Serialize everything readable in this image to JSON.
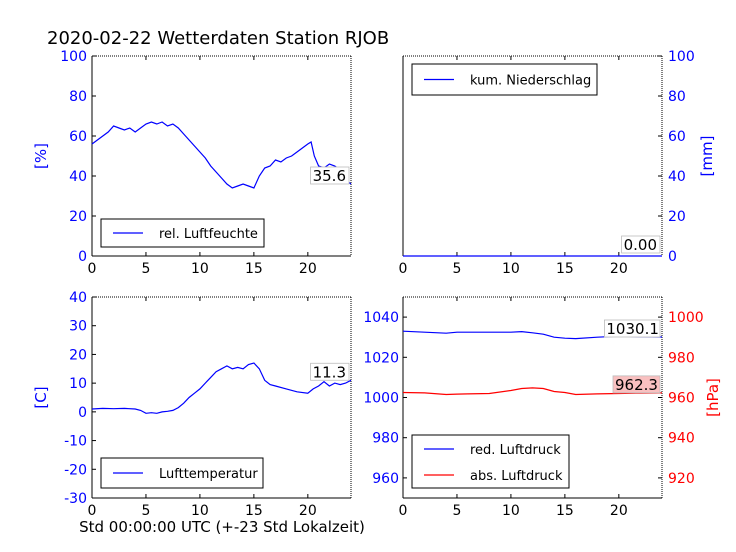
{
  "title": "2020-02-22 Wetterdaten Station RJOB",
  "xlabel": "Std 00:00:00 UTC (+-23 Std Lokalzeit)",
  "chart_data": [
    {
      "type": "line",
      "id": "humidity",
      "ylabel": "[%]",
      "ylim": [
        0,
        100
      ],
      "xlim": [
        0,
        24
      ],
      "xticks": [
        0,
        5,
        10,
        15,
        20
      ],
      "yticks": [
        0,
        20,
        40,
        60,
        80,
        100
      ],
      "legend": "rel. Luftfeuchte",
      "legend_position": "lower-left",
      "annotation": "35.6",
      "color": "#0000ff",
      "series": [
        {
          "name": "rel. Luftfeuchte",
          "x": [
            0,
            0.5,
            1,
            1.5,
            2,
            2.5,
            3,
            3.5,
            4,
            4.5,
            5,
            5.5,
            6,
            6.5,
            7,
            7.5,
            8,
            8.5,
            9,
            9.5,
            10,
            10.5,
            11,
            11.5,
            12,
            12.5,
            13,
            13.5,
            14,
            14.5,
            15,
            15.5,
            16,
            16.5,
            17,
            17.5,
            18,
            18.5,
            19,
            19.5,
            20,
            20.3,
            20.6,
            21,
            21.5,
            22,
            22.5,
            23,
            23.5,
            24
          ],
          "y": [
            56,
            58,
            60,
            62,
            65,
            64,
            63,
            64,
            62,
            64,
            66,
            67,
            66,
            67,
            65,
            66,
            64,
            61,
            58,
            55,
            52,
            49,
            45,
            42,
            39,
            36,
            34,
            35,
            36,
            35,
            34,
            40,
            44,
            45,
            48,
            47,
            49,
            50,
            52,
            54,
            56,
            57,
            50,
            45,
            44,
            46,
            45,
            43,
            38,
            36
          ]
        }
      ]
    },
    {
      "type": "line",
      "id": "precipitation",
      "ylabel": "[mm]",
      "ylim": [
        0,
        100
      ],
      "xlim": [
        0,
        24
      ],
      "xticks": [
        0,
        5,
        10,
        15,
        20
      ],
      "yticks": [
        0,
        20,
        40,
        60,
        80,
        100
      ],
      "legend": "kum. Niederschlag",
      "legend_position": "upper-left",
      "annotation": "0.00",
      "color": "#0000ff",
      "series": [
        {
          "name": "kum. Niederschlag",
          "x": [
            0,
            24
          ],
          "y": [
            0,
            0
          ]
        }
      ]
    },
    {
      "type": "line",
      "id": "temperature",
      "ylabel": "[C]",
      "ylim": [
        -30,
        40
      ],
      "xlim": [
        0,
        24
      ],
      "xticks": [
        0,
        5,
        10,
        15,
        20
      ],
      "yticks": [
        -30,
        -20,
        -10,
        0,
        10,
        20,
        30,
        40
      ],
      "legend": "Lufttemperatur",
      "legend_position": "lower-left",
      "annotation": "11.3",
      "color": "#0000ff",
      "series": [
        {
          "name": "Lufttemperatur",
          "x": [
            0,
            1,
            2,
            3,
            4,
            4.5,
            5,
            5.5,
            6,
            6.5,
            7,
            7.5,
            8,
            8.5,
            9,
            9.5,
            10,
            10.5,
            11,
            11.5,
            12,
            12.5,
            13,
            13.5,
            14,
            14.5,
            15,
            15.5,
            16,
            16.5,
            17,
            18,
            19,
            20,
            20.5,
            21,
            21.5,
            22,
            22.5,
            23,
            23.5,
            24
          ],
          "y": [
            1,
            1.2,
            1.1,
            1.2,
            1,
            0.5,
            -0.5,
            -0.3,
            -0.5,
            0,
            0.2,
            0.5,
            1.5,
            3,
            5,
            6.5,
            8,
            10,
            12,
            14,
            15,
            16,
            15,
            15.5,
            15,
            16.5,
            17,
            15,
            11,
            9.5,
            9,
            8,
            7,
            6.5,
            8,
            9,
            10.5,
            9,
            10,
            9.5,
            10,
            11
          ]
        }
      ]
    },
    {
      "type": "line",
      "id": "pressure",
      "ylabel": "[hPa]",
      "ylim_left": [
        950,
        1050
      ],
      "ylim_right": [
        910,
        1010
      ],
      "xlim": [
        0,
        24
      ],
      "xticks": [
        0,
        5,
        10,
        15,
        20
      ],
      "yticks_left": [
        960,
        980,
        1000,
        1020,
        1040
      ],
      "yticks_right": [
        920,
        940,
        960,
        980,
        1000
      ],
      "legend_position": "lower-left",
      "series": [
        {
          "name": "red. Luftdruck",
          "color": "#0000ff",
          "axis": "left",
          "annotation": "1030.1",
          "x": [
            0,
            2,
            4,
            5,
            6,
            8,
            10,
            11,
            12,
            13,
            14,
            15,
            16,
            18,
            20,
            22,
            24
          ],
          "y": [
            1033,
            1032.5,
            1032,
            1032.5,
            1032.5,
            1032.5,
            1032.5,
            1032.8,
            1032.2,
            1031.5,
            1030,
            1029.5,
            1029.3,
            1030,
            1030.5,
            1030.2,
            1030.1
          ]
        },
        {
          "name": "abs. Luftdruck",
          "color": "#ff0000",
          "axis": "right",
          "annotation": "962.3",
          "x": [
            0,
            2,
            4,
            5,
            6,
            8,
            10,
            11,
            12,
            13,
            14,
            15,
            16,
            18,
            20,
            22,
            24
          ],
          "y": [
            962.5,
            962.3,
            961.5,
            961.7,
            961.8,
            962,
            963.5,
            964.5,
            964.8,
            964.5,
            963,
            962.5,
            961.5,
            961.8,
            962,
            962.2,
            962.3
          ]
        }
      ]
    }
  ]
}
